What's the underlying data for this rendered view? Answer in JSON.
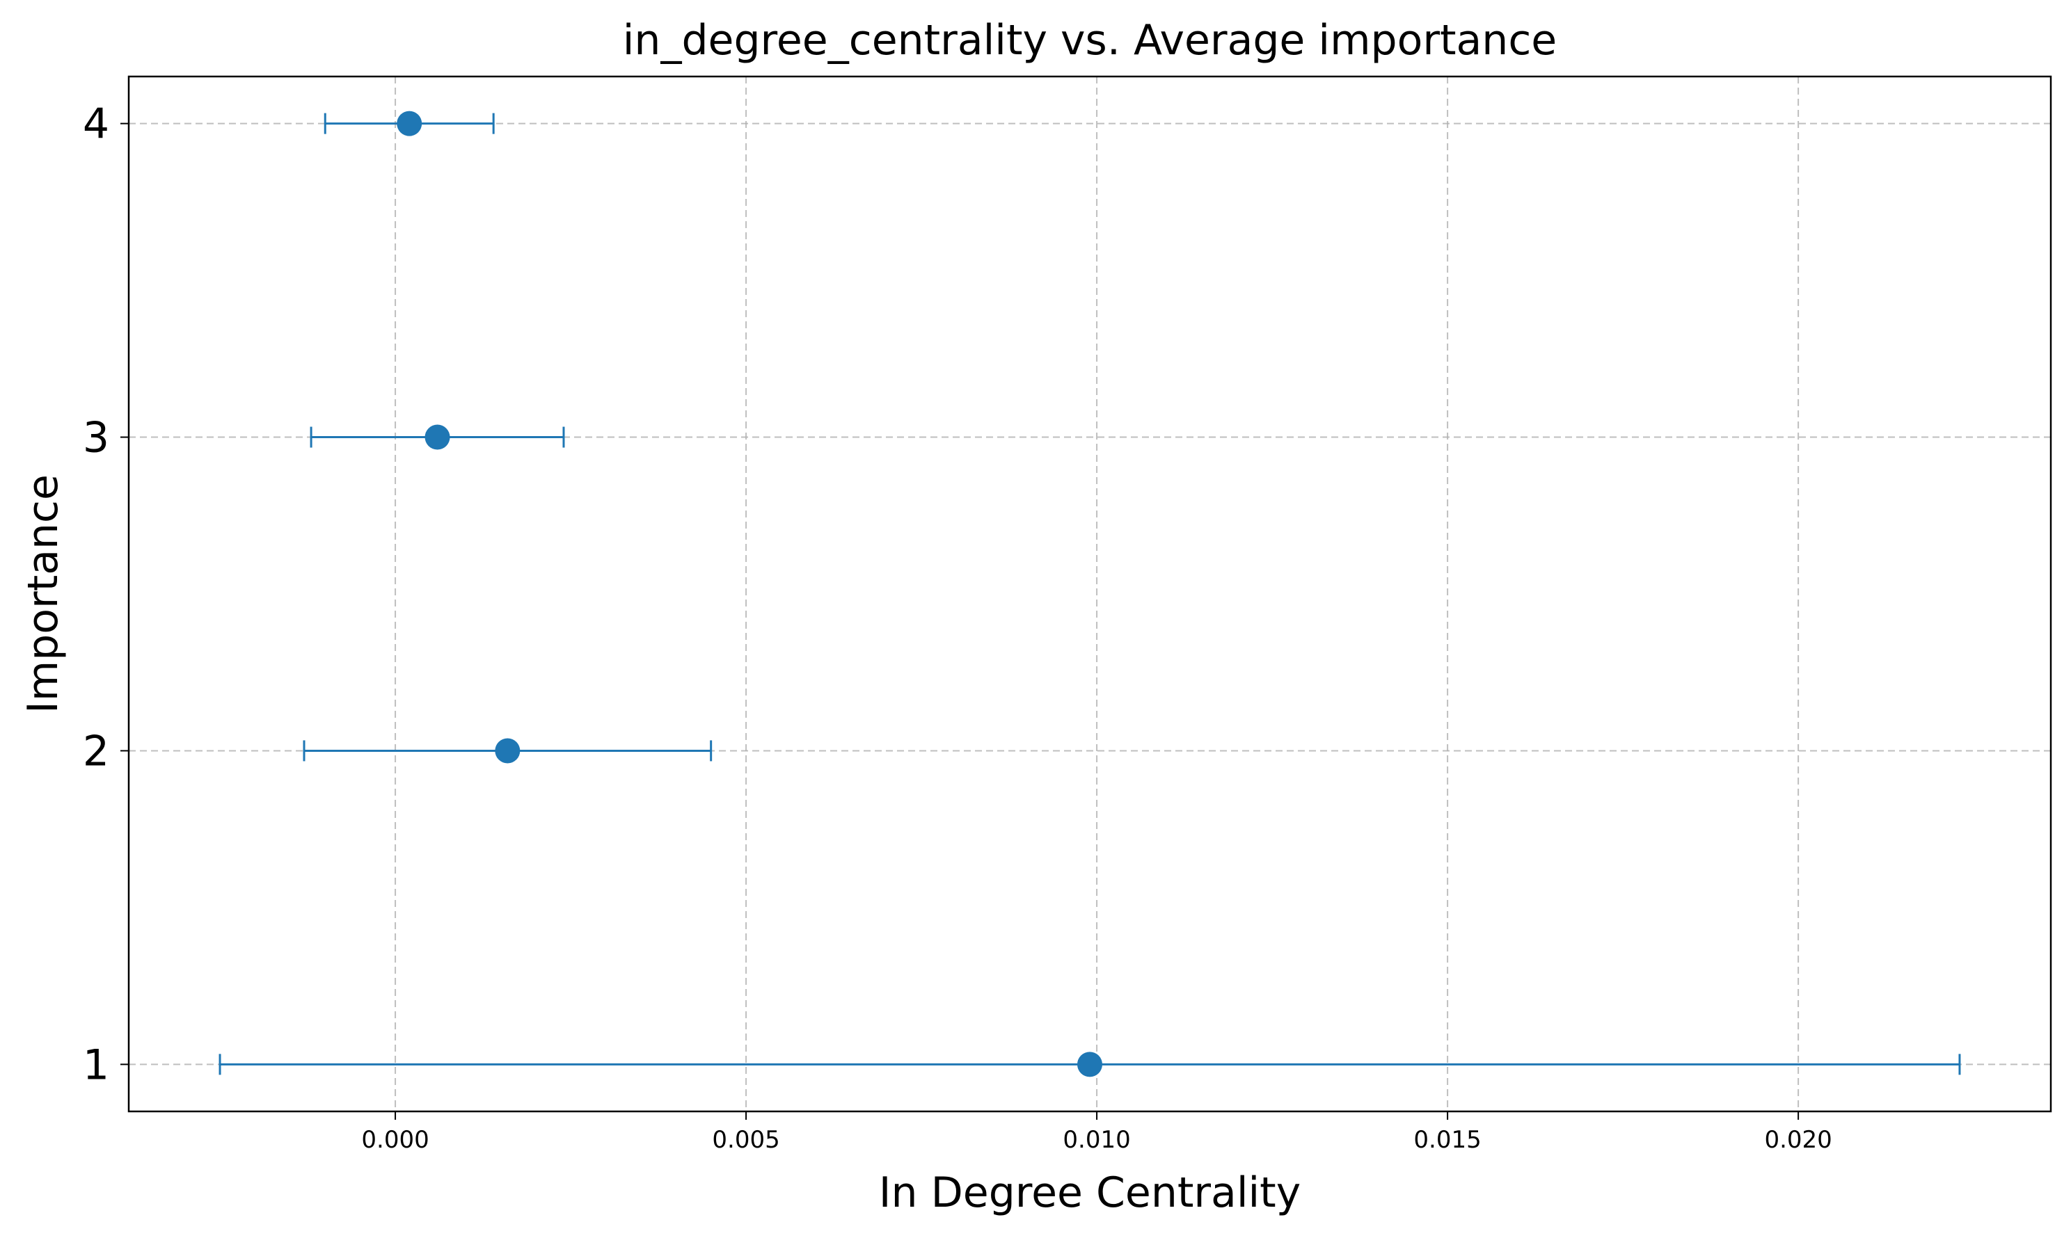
{
  "chart_data": {
    "type": "scatter",
    "title": "in_degree_centrality vs. Average importance",
    "xlabel": "In Degree Centrality",
    "ylabel": "Importance",
    "xlim": [
      -0.0038,
      0.0236
    ],
    "ylim": [
      0.85,
      4.15
    ],
    "xticks": [
      0.0,
      0.005,
      0.01,
      0.015,
      0.02
    ],
    "xtick_labels": [
      "0.000",
      "0.005",
      "0.010",
      "0.015",
      "0.020"
    ],
    "yticks": [
      1,
      2,
      3,
      4
    ],
    "ytick_labels": [
      "1",
      "2",
      "3",
      "4"
    ],
    "grid": true,
    "color": "#1f77b4",
    "points": [
      {
        "y": 1,
        "x": 0.0099,
        "xerr": 0.0124
      },
      {
        "y": 2,
        "x": 0.0016,
        "xerr": 0.0029
      },
      {
        "y": 3,
        "x": 0.0006,
        "xerr": 0.0018
      },
      {
        "y": 4,
        "x": 0.0002,
        "xerr": 0.0012
      }
    ]
  }
}
